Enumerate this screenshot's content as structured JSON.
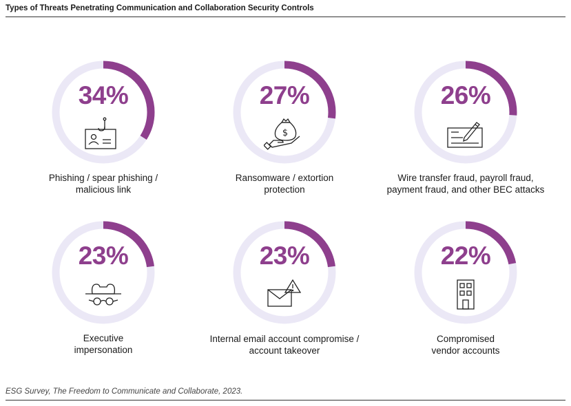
{
  "header": {
    "title": "Types of Threats Penetrating Communication and Collaboration Security Controls"
  },
  "footer": {
    "source": "ESG Survey, The Freedom to Communicate and Collaborate, 2023."
  },
  "colors": {
    "accent": "#8e3f8d",
    "track": "#ebe8f6",
    "text": "#1a1a1a"
  },
  "chart_data": {
    "type": "donut",
    "title": "Types of Threats Penetrating Communication and Collaboration Security Controls",
    "unit": "%",
    "categories": [
      "Phishing / spear phishing / malicious link",
      "Ransomware / extortion protection",
      "Wire transfer fraud, payroll fraud, payment fraud, and other BEC attacks",
      "Executive impersonation",
      "Internal email account compromise / account takeover",
      "Compromised vendor accounts"
    ],
    "values": [
      34,
      27,
      26,
      23,
      23,
      22
    ],
    "value_labels": [
      "34%",
      "27%",
      "26%",
      "23%",
      "23%",
      "22%"
    ],
    "label_lines": [
      [
        "Phishing / spear phishing /",
        "malicious link"
      ],
      [
        "Ransomware / extortion",
        "protection"
      ],
      [
        "Wire transfer fraud, payroll fraud,",
        "payment fraud, and other BEC attacks"
      ],
      [
        "Executive",
        "impersonation"
      ],
      [
        "Internal email account compromise /",
        "account takeover"
      ],
      [
        "Compromised",
        "vendor accounts"
      ]
    ],
    "icons": [
      "phishing-hook-icon",
      "money-bag-hand-icon",
      "check-signature-icon",
      "spy-hat-glasses-icon",
      "envelope-warning-icon",
      "office-building-icon"
    ]
  }
}
